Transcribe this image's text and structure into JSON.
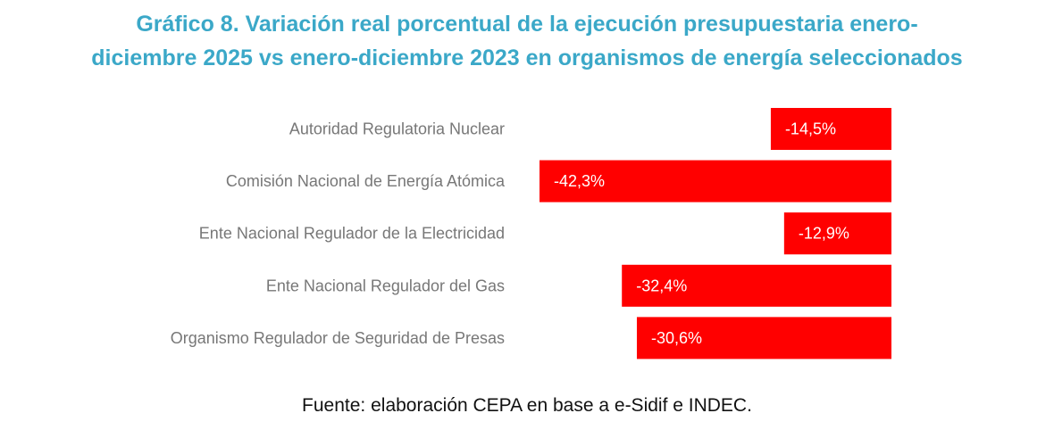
{
  "chart_data": {
    "type": "bar",
    "orientation": "horizontal",
    "title": "Gráfico 8. Variación real porcentual de la ejecución presupuestaria enero-diciembre 2025 vs enero-diciembre 2023 en organismos de energía seleccionados",
    "title_lines": [
      "Gráfico 8. Variación real porcentual de la ejecución presupuestaria enero-",
      "diciembre 2025 vs enero-diciembre 2023 en organismos de energía seleccionados"
    ],
    "categories": [
      "Autoridad Regulatoria Nuclear",
      "Comisión Nacional de Energía Atómica",
      "Ente Nacional Regulador de la Electricidad",
      "Ente Nacional Regulador del Gas",
      "Organismo Regulador de Seguridad de Presas"
    ],
    "values": [
      -14.5,
      -42.3,
      -12.9,
      -32.4,
      -30.6
    ],
    "data_labels": [
      "-14,5%",
      "-42,3%",
      "-12,9%",
      "-32,4%",
      "-30,6%"
    ],
    "xlabel": "",
    "ylabel": "",
    "xlim": [
      -42.3,
      0
    ],
    "grid": false,
    "legend": "none",
    "bar_color": "#FF0000",
    "source": "Fuente: elaboración CEPA en base a e-Sidif e INDEC."
  }
}
